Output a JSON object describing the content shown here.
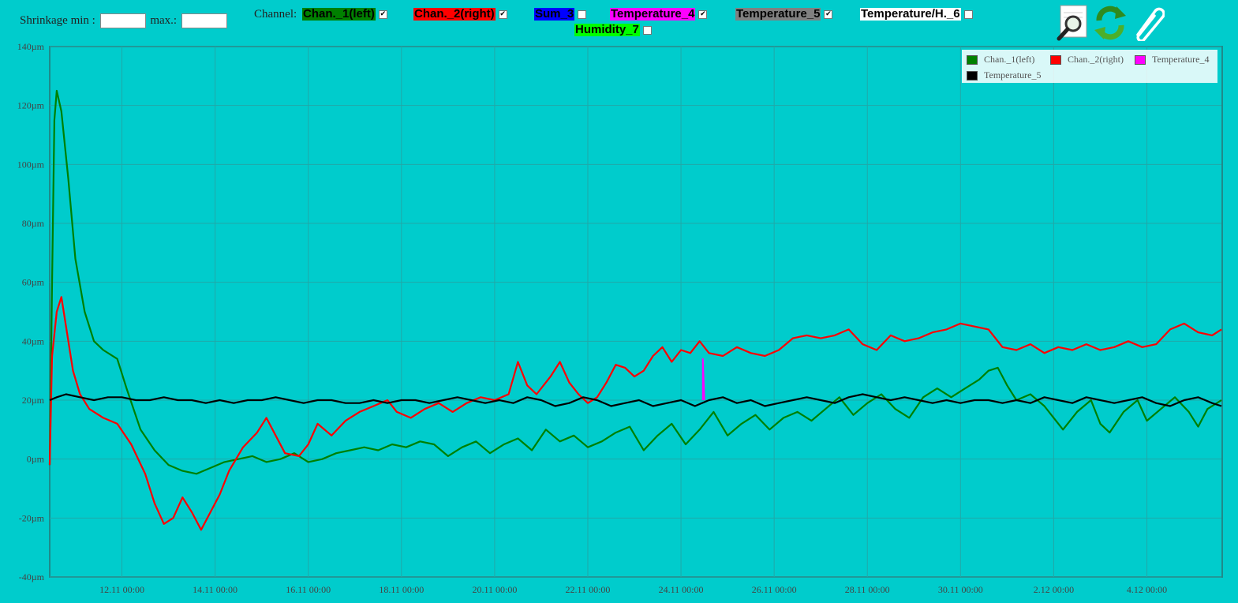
{
  "toolbar": {
    "shrinkage_min_label": "Shrinkage min :",
    "shrinkage_max_label": "max.:",
    "shrinkage_min_value": "",
    "shrinkage_max_value": "",
    "channel_label": "Channel:",
    "channels": [
      {
        "label": "Chan._1(left)",
        "checked": true,
        "bg": "#008000",
        "fg": "#000000"
      },
      {
        "label": "Chan._2(right)",
        "checked": true,
        "bg": "#ff0000",
        "fg": "#000000"
      },
      {
        "label": "Sum_3",
        "checked": false,
        "bg": "#0000ff",
        "fg": "#000000"
      },
      {
        "label": "Temperature_4",
        "checked": true,
        "bg": "#ff00ff",
        "fg": "#000000"
      },
      {
        "label": "Temperature_5",
        "checked": true,
        "bg": "#808080",
        "fg": "#000000"
      },
      {
        "label": "Temperature/H._6",
        "checked": false,
        "bg": "#ffffff",
        "fg": "#000000"
      },
      {
        "label": "Humidity_7",
        "checked": false,
        "bg": "#00ff00",
        "fg": "#000000"
      }
    ],
    "icons": [
      "zoom-search-icon",
      "refresh-icon",
      "paperclip-icon"
    ]
  },
  "chart_data": {
    "type": "line",
    "title": "",
    "xlabel": "",
    "ylabel": "",
    "ylim": [
      -40,
      140
    ],
    "y_unit": "µm",
    "y_ticks": [
      "140µm",
      "120µm",
      "100µm",
      "80µm",
      "60µm",
      "40µm",
      "20µm",
      "0µm",
      "-20µm",
      "-40µm"
    ],
    "x_ticks": [
      "12.11 00:00",
      "14.11 00:00",
      "16.11 00:00",
      "18.11 00:00",
      "20.11 00:00",
      "22.11 00:00",
      "24.11 00:00",
      "26.11 00:00",
      "28.11 00:00",
      "30.11 00:00",
      "2.12 00:00",
      "4.12 00:00"
    ],
    "grid": true,
    "legend_position": "top-right",
    "legend": [
      {
        "name": "Chan._1(left)",
        "color": "#008000"
      },
      {
        "name": "Chan._2(right)",
        "color": "#ff0000"
      },
      {
        "name": "Temperature_4",
        "color": "#ff00ff"
      },
      {
        "name": "Temperature_5",
        "color": "#000000"
      }
    ],
    "x_start_day": 10.45,
    "x_end_day": 35.6,
    "series": [
      {
        "name": "Chan._1(left)",
        "color": "#008000",
        "points": [
          [
            10.45,
            -2
          ],
          [
            10.5,
            60
          ],
          [
            10.55,
            115
          ],
          [
            10.6,
            125
          ],
          [
            10.7,
            118
          ],
          [
            10.85,
            95
          ],
          [
            11.0,
            68
          ],
          [
            11.2,
            50
          ],
          [
            11.4,
            40
          ],
          [
            11.6,
            37
          ],
          [
            11.9,
            34
          ],
          [
            12.1,
            24
          ],
          [
            12.4,
            10
          ],
          [
            12.7,
            3
          ],
          [
            13.0,
            -2
          ],
          [
            13.3,
            -4
          ],
          [
            13.6,
            -5
          ],
          [
            13.9,
            -3
          ],
          [
            14.2,
            -1
          ],
          [
            14.5,
            0
          ],
          [
            14.8,
            1
          ],
          [
            15.1,
            -1
          ],
          [
            15.4,
            0
          ],
          [
            15.7,
            2
          ],
          [
            16.0,
            -1
          ],
          [
            16.3,
            0
          ],
          [
            16.6,
            2
          ],
          [
            16.9,
            3
          ],
          [
            17.2,
            4
          ],
          [
            17.5,
            3
          ],
          [
            17.8,
            5
          ],
          [
            18.1,
            4
          ],
          [
            18.4,
            6
          ],
          [
            18.7,
            5
          ],
          [
            19.0,
            1
          ],
          [
            19.3,
            4
          ],
          [
            19.6,
            6
          ],
          [
            19.9,
            2
          ],
          [
            20.2,
            5
          ],
          [
            20.5,
            7
          ],
          [
            20.8,
            3
          ],
          [
            21.1,
            10
          ],
          [
            21.4,
            6
          ],
          [
            21.7,
            8
          ],
          [
            22.0,
            4
          ],
          [
            22.3,
            6
          ],
          [
            22.6,
            9
          ],
          [
            22.9,
            11
          ],
          [
            23.2,
            3
          ],
          [
            23.5,
            8
          ],
          [
            23.8,
            12
          ],
          [
            24.1,
            5
          ],
          [
            24.4,
            10
          ],
          [
            24.7,
            16
          ],
          [
            25.0,
            8
          ],
          [
            25.3,
            12
          ],
          [
            25.6,
            15
          ],
          [
            25.9,
            10
          ],
          [
            26.2,
            14
          ],
          [
            26.5,
            16
          ],
          [
            26.8,
            13
          ],
          [
            27.1,
            17
          ],
          [
            27.4,
            21
          ],
          [
            27.7,
            15
          ],
          [
            28.0,
            19
          ],
          [
            28.3,
            22
          ],
          [
            28.6,
            17
          ],
          [
            28.9,
            14
          ],
          [
            29.2,
            21
          ],
          [
            29.5,
            24
          ],
          [
            29.8,
            21
          ],
          [
            30.1,
            24
          ],
          [
            30.4,
            27
          ],
          [
            30.6,
            30
          ],
          [
            30.8,
            31
          ],
          [
            31.0,
            25
          ],
          [
            31.2,
            20
          ],
          [
            31.5,
            22
          ],
          [
            31.8,
            18
          ],
          [
            32.0,
            14
          ],
          [
            32.2,
            10
          ],
          [
            32.5,
            16
          ],
          [
            32.8,
            20
          ],
          [
            33.0,
            12
          ],
          [
            33.2,
            9
          ],
          [
            33.5,
            16
          ],
          [
            33.8,
            20
          ],
          [
            34.0,
            13
          ],
          [
            34.3,
            17
          ],
          [
            34.6,
            21
          ],
          [
            34.9,
            16
          ],
          [
            35.1,
            11
          ],
          [
            35.3,
            17
          ],
          [
            35.6,
            20
          ]
        ]
      },
      {
        "name": "Chan._2(right)",
        "color": "#ff0000",
        "points": [
          [
            10.45,
            -2
          ],
          [
            10.5,
            35
          ],
          [
            10.6,
            50
          ],
          [
            10.7,
            55
          ],
          [
            10.8,
            45
          ],
          [
            10.95,
            30
          ],
          [
            11.1,
            22
          ],
          [
            11.3,
            17
          ],
          [
            11.6,
            14
          ],
          [
            11.9,
            12
          ],
          [
            12.2,
            5
          ],
          [
            12.5,
            -5
          ],
          [
            12.7,
            -15
          ],
          [
            12.9,
            -22
          ],
          [
            13.1,
            -20
          ],
          [
            13.3,
            -13
          ],
          [
            13.5,
            -18
          ],
          [
            13.7,
            -24
          ],
          [
            13.9,
            -18
          ],
          [
            14.1,
            -12
          ],
          [
            14.3,
            -4
          ],
          [
            14.6,
            4
          ],
          [
            14.9,
            9
          ],
          [
            15.1,
            14
          ],
          [
            15.3,
            8
          ],
          [
            15.5,
            2
          ],
          [
            15.8,
            1
          ],
          [
            16.0,
            5
          ],
          [
            16.2,
            12
          ],
          [
            16.5,
            8
          ],
          [
            16.8,
            13
          ],
          [
            17.1,
            16
          ],
          [
            17.4,
            18
          ],
          [
            17.7,
            20
          ],
          [
            17.9,
            16
          ],
          [
            18.2,
            14
          ],
          [
            18.5,
            17
          ],
          [
            18.8,
            19
          ],
          [
            19.1,
            16
          ],
          [
            19.4,
            19
          ],
          [
            19.7,
            21
          ],
          [
            20.0,
            20
          ],
          [
            20.3,
            22
          ],
          [
            20.5,
            33
          ],
          [
            20.7,
            25
          ],
          [
            20.9,
            22
          ],
          [
            21.2,
            28
          ],
          [
            21.4,
            33
          ],
          [
            21.6,
            26
          ],
          [
            21.8,
            22
          ],
          [
            22.0,
            19
          ],
          [
            22.2,
            21
          ],
          [
            22.4,
            26
          ],
          [
            22.6,
            32
          ],
          [
            22.8,
            31
          ],
          [
            23.0,
            28
          ],
          [
            23.2,
            30
          ],
          [
            23.4,
            35
          ],
          [
            23.6,
            38
          ],
          [
            23.8,
            33
          ],
          [
            24.0,
            37
          ],
          [
            24.2,
            36
          ],
          [
            24.4,
            40
          ],
          [
            24.6,
            36
          ],
          [
            24.9,
            35
          ],
          [
            25.2,
            38
          ],
          [
            25.5,
            36
          ],
          [
            25.8,
            35
          ],
          [
            26.1,
            37
          ],
          [
            26.4,
            41
          ],
          [
            26.7,
            42
          ],
          [
            27.0,
            41
          ],
          [
            27.3,
            42
          ],
          [
            27.6,
            44
          ],
          [
            27.9,
            39
          ],
          [
            28.2,
            37
          ],
          [
            28.5,
            42
          ],
          [
            28.8,
            40
          ],
          [
            29.1,
            41
          ],
          [
            29.4,
            43
          ],
          [
            29.7,
            44
          ],
          [
            30.0,
            46
          ],
          [
            30.3,
            45
          ],
          [
            30.6,
            44
          ],
          [
            30.9,
            38
          ],
          [
            31.2,
            37
          ],
          [
            31.5,
            39
          ],
          [
            31.8,
            36
          ],
          [
            32.1,
            38
          ],
          [
            32.4,
            37
          ],
          [
            32.7,
            39
          ],
          [
            33.0,
            37
          ],
          [
            33.3,
            38
          ],
          [
            33.6,
            40
          ],
          [
            33.9,
            38
          ],
          [
            34.2,
            39
          ],
          [
            34.5,
            44
          ],
          [
            34.8,
            46
          ],
          [
            35.1,
            43
          ],
          [
            35.4,
            42
          ],
          [
            35.6,
            44
          ]
        ]
      },
      {
        "name": "Temperature_4",
        "color": "#ff00ff",
        "points": [
          [
            24.47,
            20
          ],
          [
            24.47,
            34
          ],
          [
            24.5,
            20
          ]
        ]
      },
      {
        "name": "Temperature_5",
        "color": "#000000",
        "points": [
          [
            10.45,
            20
          ],
          [
            10.6,
            21
          ],
          [
            10.8,
            22
          ],
          [
            11.1,
            21
          ],
          [
            11.4,
            20
          ],
          [
            11.7,
            21
          ],
          [
            12.0,
            21
          ],
          [
            12.3,
            20
          ],
          [
            12.6,
            20
          ],
          [
            12.9,
            21
          ],
          [
            13.2,
            20
          ],
          [
            13.5,
            20
          ],
          [
            13.8,
            19
          ],
          [
            14.1,
            20
          ],
          [
            14.4,
            19
          ],
          [
            14.7,
            20
          ],
          [
            15.0,
            20
          ],
          [
            15.3,
            21
          ],
          [
            15.6,
            20
          ],
          [
            15.9,
            19
          ],
          [
            16.2,
            20
          ],
          [
            16.5,
            20
          ],
          [
            16.8,
            19
          ],
          [
            17.1,
            19
          ],
          [
            17.4,
            20
          ],
          [
            17.7,
            19
          ],
          [
            18.0,
            20
          ],
          [
            18.3,
            20
          ],
          [
            18.6,
            19
          ],
          [
            18.9,
            20
          ],
          [
            19.2,
            21
          ],
          [
            19.5,
            20
          ],
          [
            19.8,
            19
          ],
          [
            20.1,
            20
          ],
          [
            20.4,
            19
          ],
          [
            20.7,
            21
          ],
          [
            21.0,
            20
          ],
          [
            21.3,
            18
          ],
          [
            21.6,
            19
          ],
          [
            21.9,
            21
          ],
          [
            22.2,
            20
          ],
          [
            22.5,
            18
          ],
          [
            22.8,
            19
          ],
          [
            23.1,
            20
          ],
          [
            23.4,
            18
          ],
          [
            23.7,
            19
          ],
          [
            24.0,
            20
          ],
          [
            24.3,
            18
          ],
          [
            24.6,
            20
          ],
          [
            24.9,
            21
          ],
          [
            25.2,
            19
          ],
          [
            25.5,
            20
          ],
          [
            25.8,
            18
          ],
          [
            26.1,
            19
          ],
          [
            26.4,
            20
          ],
          [
            26.7,
            21
          ],
          [
            27.0,
            20
          ],
          [
            27.3,
            19
          ],
          [
            27.6,
            21
          ],
          [
            27.9,
            22
          ],
          [
            28.2,
            21
          ],
          [
            28.5,
            20
          ],
          [
            28.8,
            21
          ],
          [
            29.1,
            20
          ],
          [
            29.4,
            19
          ],
          [
            29.7,
            20
          ],
          [
            30.0,
            19
          ],
          [
            30.3,
            20
          ],
          [
            30.6,
            20
          ],
          [
            30.9,
            19
          ],
          [
            31.2,
            20
          ],
          [
            31.5,
            19
          ],
          [
            31.8,
            21
          ],
          [
            32.1,
            20
          ],
          [
            32.4,
            19
          ],
          [
            32.7,
            21
          ],
          [
            33.0,
            20
          ],
          [
            33.3,
            19
          ],
          [
            33.6,
            20
          ],
          [
            33.9,
            21
          ],
          [
            34.2,
            19
          ],
          [
            34.5,
            18
          ],
          [
            34.8,
            20
          ],
          [
            35.1,
            21
          ],
          [
            35.4,
            19
          ],
          [
            35.6,
            18
          ]
        ]
      }
    ]
  }
}
